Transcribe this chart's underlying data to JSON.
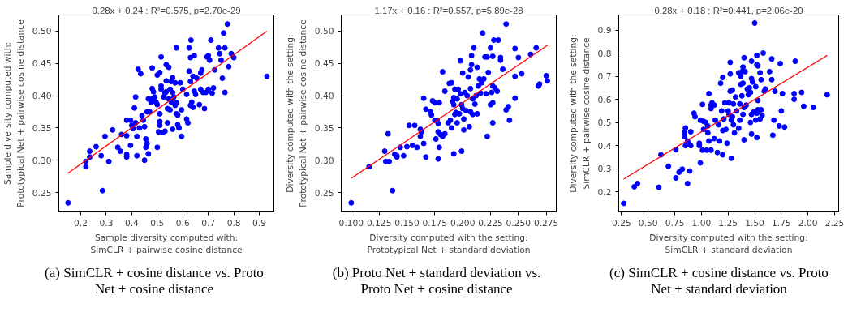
{
  "chart_data": [
    {
      "type": "scatter",
      "title": "0.28x + 0.24 : R²=0.575, p=2.70e-29",
      "xlabel": "Sample diversity computed with:\nSimCLR + pairwise cosine distance",
      "ylabel": "Sample diversity computed with:\nPrototypical Net + pairwise cosine distance",
      "annotations": [
        "(a) SimCLR + cosine distance vs. Proto Net + cosine distance"
      ],
      "grid": false,
      "xlim": [
        0.114,
        0.957
      ],
      "ylim": [
        0.22,
        0.525
      ],
      "xticks": [
        0.2,
        0.3,
        0.4,
        0.5,
        0.6,
        0.7,
        0.8,
        0.9
      ],
      "yticks": [
        {
          "value": 0.25,
          "label": "0.25"
        },
        {
          "value": 0.3,
          "label": "0.30"
        },
        {
          "value": 0.35,
          "label": "0.35"
        },
        {
          "value": 0.4,
          "label": "0.40"
        },
        {
          "value": 0.45,
          "label": "0.45"
        },
        {
          "value": 0.5,
          "label": "0.50"
        }
      ],
      "series": [
        {
          "marker": "circle",
          "color": "#0000ff",
          "x": [
            0.15,
            0.285,
            0.22,
            0.22,
            0.235,
            0.235,
            0.26,
            0.295,
            0.28,
            0.31,
            0.325,
            0.345,
            0.355,
            0.36,
            0.38,
            0.38,
            0.38,
            0.38,
            0.395,
            0.395,
            0.4,
            0.405,
            0.415,
            0.41,
            0.415,
            0.42,
            0.42,
            0.425,
            0.43,
            0.435,
            0.44,
            0.445,
            0.45,
            0.45,
            0.455,
            0.455,
            0.46,
            0.46,
            0.465,
            0.465,
            0.47,
            0.475,
            0.48,
            0.48,
            0.48,
            0.485,
            0.49,
            0.495,
            0.5,
            0.5,
            0.5,
            0.505,
            0.51,
            0.51,
            0.51,
            0.51,
            0.515,
            0.515,
            0.515,
            0.52,
            0.525,
            0.53,
            0.53,
            0.535,
            0.535,
            0.535,
            0.54,
            0.54,
            0.545,
            0.545,
            0.55,
            0.55,
            0.555,
            0.555,
            0.56,
            0.56,
            0.56,
            0.565,
            0.57,
            0.57,
            0.575,
            0.575,
            0.575,
            0.58,
            0.58,
            0.585,
            0.59,
            0.595,
            0.595,
            0.6,
            0.615,
            0.615,
            0.62,
            0.625,
            0.625,
            0.63,
            0.63,
            0.63,
            0.632,
            0.635,
            0.64,
            0.64,
            0.645,
            0.645,
            0.65,
            0.655,
            0.665,
            0.67,
            0.67,
            0.675,
            0.68,
            0.685,
            0.69,
            0.695,
            0.7,
            0.7,
            0.705,
            0.71,
            0.715,
            0.72,
            0.725,
            0.74,
            0.745,
            0.75,
            0.755,
            0.76,
            0.765,
            0.765,
            0.775,
            0.78,
            0.79,
            0.8,
            0.93
          ],
          "values": [
            0.234,
            0.253,
            0.29,
            0.298,
            0.305,
            0.314,
            0.321,
            0.337,
            0.307,
            0.298,
            0.347,
            0.32,
            0.314,
            0.34,
            0.338,
            0.305,
            0.309,
            0.362,
            0.362,
            0.323,
            0.354,
            0.349,
            0.358,
            0.381,
            0.398,
            0.337,
            0.307,
            0.441,
            0.35,
            0.434,
            0.369,
            0.362,
            0.352,
            0.3,
            0.333,
            0.32,
            0.326,
            0.375,
            0.31,
            0.395,
            0.375,
            0.39,
            0.395,
            0.411,
            0.443,
            0.406,
            0.398,
            0.39,
            0.386,
            0.432,
            0.32,
            0.344,
            0.36,
            0.354,
            0.372,
            0.436,
            0.41,
            0.46,
            0.415,
            0.343,
            0.398,
            0.345,
            0.404,
            0.406,
            0.423,
            0.448,
            0.358,
            0.38,
            0.444,
            0.395,
            0.378,
            0.41,
            0.422,
            0.39,
            0.348,
            0.405,
            0.428,
            0.398,
            0.385,
            0.42,
            0.372,
            0.474,
            0.389,
            0.37,
            0.355,
            0.35,
            0.42,
            0.337,
            0.378,
            0.41,
            0.364,
            0.402,
            0.358,
            0.474,
            0.438,
            0.459,
            0.422,
            0.385,
            0.486,
            0.39,
            0.382,
            0.43,
            0.407,
            0.462,
            0.402,
            0.427,
            0.386,
            0.435,
            0.41,
            0.44,
            0.405,
            0.38,
            0.405,
            0.46,
            0.41,
            0.462,
            0.455,
            0.486,
            0.404,
            0.412,
            0.44,
            0.474,
            0.465,
            0.455,
            0.427,
            0.497,
            0.474,
            0.405,
            0.511,
            0.445,
            0.465,
            0.459,
            0.43
          ]
        },
        {
          "type": "line",
          "color": "#ff0000",
          "x": [
            0.15,
            0.93
          ],
          "values": [
            0.28,
            0.5
          ]
        }
      ]
    },
    {
      "type": "scatter",
      "title": "1.17x + 0.16 : R²=0.557, p=5.89e-28",
      "xlabel": "Diversity computed with the setting:\nPrototypical Net + standard deviation",
      "ylabel": "Diversity computed with the setting:\nPrototypical Net + pairwise cosine distance",
      "annotations": [
        "(b) Proto Net + standard deviation vs. Proto Net + cosine distance"
      ],
      "grid": false,
      "xlim": [
        0.091,
        0.284
      ],
      "ylim": [
        0.22,
        0.525
      ],
      "xticks": [
        {
          "value": 0.1,
          "label": "0.100"
        },
        {
          "value": 0.125,
          "label": "0.125"
        },
        {
          "value": 0.15,
          "label": "0.150"
        },
        {
          "value": 0.175,
          "label": "0.175"
        },
        {
          "value": 0.2,
          "label": "0.200"
        },
        {
          "value": 0.225,
          "label": "0.225"
        },
        {
          "value": 0.25,
          "label": "0.250"
        },
        {
          "value": 0.275,
          "label": "0.275"
        }
      ],
      "yticks": [
        {
          "value": 0.25,
          "label": "0.25"
        },
        {
          "value": 0.3,
          "label": "0.30"
        },
        {
          "value": 0.35,
          "label": "0.35"
        },
        {
          "value": 0.4,
          "label": "0.40"
        },
        {
          "value": 0.45,
          "label": "0.45"
        },
        {
          "value": 0.5,
          "label": "0.50"
        }
      ],
      "series": [
        {
          "marker": "circle",
          "color": "#0000ff",
          "x": [
            0.1,
            0.116,
            0.13,
            0.131,
            0.133,
            0.134,
            0.137,
            0.139,
            0.141,
            0.141,
            0.144,
            0.147,
            0.15,
            0.152,
            0.155,
            0.157,
            0.159,
            0.162,
            0.162,
            0.163,
            0.165,
            0.165,
            0.167,
            0.167,
            0.171,
            0.172,
            0.173,
            0.175,
            0.175,
            0.176,
            0.177,
            0.178,
            0.178,
            0.178,
            0.179,
            0.179,
            0.18,
            0.182,
            0.182,
            0.184,
            0.184,
            0.187,
            0.188,
            0.189,
            0.19,
            0.19,
            0.191,
            0.192,
            0.192,
            0.192,
            0.193,
            0.193,
            0.194,
            0.195,
            0.195,
            0.196,
            0.197,
            0.198,
            0.198,
            0.199,
            0.199,
            0.2,
            0.2,
            0.201,
            0.201,
            0.202,
            0.203,
            0.204,
            0.205,
            0.206,
            0.207,
            0.207,
            0.207,
            0.208,
            0.208,
            0.209,
            0.209,
            0.21,
            0.211,
            0.212,
            0.213,
            0.213,
            0.214,
            0.215,
            0.216,
            0.217,
            0.218,
            0.219,
            0.22,
            0.221,
            0.222,
            0.222,
            0.223,
            0.225,
            0.225,
            0.226,
            0.227,
            0.227,
            0.227,
            0.227,
            0.228,
            0.229,
            0.231,
            0.232,
            0.234,
            0.234,
            0.236,
            0.239,
            0.239,
            0.241,
            0.242,
            0.247,
            0.247,
            0.247,
            0.25,
            0.253,
            0.261,
            0.266,
            0.268,
            0.269,
            0.275,
            0.276
          ],
          "values": [
            0.234,
            0.29,
            0.314,
            0.298,
            0.341,
            0.298,
            0.253,
            0.309,
            0.305,
            0.307,
            0.32,
            0.307,
            0.321,
            0.354,
            0.323,
            0.354,
            0.32,
            0.348,
            0.337,
            0.344,
            0.396,
            0.326,
            0.305,
            0.379,
            0.375,
            0.37,
            0.392,
            0.362,
            0.389,
            0.333,
            0.362,
            0.302,
            0.344,
            0.357,
            0.32,
            0.389,
            0.34,
            0.437,
            0.337,
            0.341,
            0.407,
            0.358,
            0.419,
            0.362,
            0.42,
            0.35,
            0.391,
            0.31,
            0.397,
            0.386,
            0.371,
            0.41,
            0.374,
            0.358,
            0.395,
            0.41,
            0.372,
            0.454,
            0.403,
            0.314,
            0.386,
            0.435,
            0.38,
            0.347,
            0.364,
            0.405,
            0.377,
            0.4,
            0.429,
            0.352,
            0.375,
            0.411,
            0.44,
            0.462,
            0.448,
            0.395,
            0.371,
            0.474,
            0.387,
            0.4,
            0.372,
            0.444,
            0.415,
            0.426,
            0.404,
            0.42,
            0.497,
            0.426,
            0.46,
            0.403,
            0.46,
            0.337,
            0.436,
            0.386,
            0.474,
            0.405,
            0.415,
            0.358,
            0.461,
            0.389,
            0.486,
            0.412,
            0.407,
            0.486,
            0.455,
            0.459,
            0.441,
            0.511,
            0.378,
            0.383,
            0.362,
            0.473,
            0.43,
            0.396,
            0.459,
            0.434,
            0.464,
            0.474,
            0.415,
            0.418,
            0.431,
            0.423
          ]
        },
        {
          "type": "line",
          "color": "#ff0000",
          "x": [
            0.1,
            0.276
          ],
          "values": [
            0.272,
            0.478
          ]
        }
      ]
    },
    {
      "type": "scatter",
      "title": "0.28x + 0.18 : R²=0.441, p=2.06e-20",
      "xlabel": "Diversity computed with the setting:\nSimCLR + standard deviation",
      "ylabel": "Diversity computed with the setting:\nSimCLR + pairwise cosine distance",
      "annotations": [
        "(c) SimCLR + cosine distance vs. Proto Net + standard deviation"
      ],
      "grid": false,
      "xlim": [
        0.224,
        2.288
      ],
      "ylim": [
        0.113,
        0.965
      ],
      "xticks": [
        0.25,
        {
          "value": 0.5,
          "label": "0.50"
        },
        0.75,
        {
          "value": 1.0,
          "label": "1.00"
        },
        1.25,
        {
          "value": 1.5,
          "label": "1.50"
        },
        1.75,
        {
          "value": 2.0,
          "label": "2.00"
        },
        2.25
      ],
      "yticks": [
        0.2,
        0.3,
        0.4,
        0.5,
        0.6,
        0.7,
        0.8,
        0.9
      ],
      "series": [
        {
          "marker": "circle",
          "color": "#0000ff",
          "x": [
            0.27,
            0.37,
            0.4,
            0.6,
            0.62,
            0.69,
            0.76,
            0.76,
            0.79,
            0.82,
            0.84,
            0.84,
            0.85,
            0.85,
            0.87,
            0.87,
            0.88,
            0.89,
            0.9,
            0.9,
            0.93,
            0.94,
            0.98,
            0.98,
            0.99,
            0.99,
            1.01,
            1.01,
            1.02,
            1.02,
            1.04,
            1.05,
            1.06,
            1.06,
            1.07,
            1.07,
            1.09,
            1.09,
            1.09,
            1.1,
            1.12,
            1.12,
            1.13,
            1.15,
            1.16,
            1.17,
            1.18,
            1.19,
            1.2,
            1.2,
            1.2,
            1.21,
            1.22,
            1.23,
            1.24,
            1.25,
            1.26,
            1.26,
            1.27,
            1.27,
            1.27,
            1.28,
            1.28,
            1.29,
            1.29,
            1.3,
            1.3,
            1.31,
            1.32,
            1.33,
            1.35,
            1.35,
            1.36,
            1.36,
            1.37,
            1.37,
            1.38,
            1.38,
            1.39,
            1.39,
            1.39,
            1.4,
            1.4,
            1.4,
            1.41,
            1.42,
            1.43,
            1.44,
            1.45,
            1.46,
            1.46,
            1.47,
            1.47,
            1.47,
            1.47,
            1.48,
            1.49,
            1.5,
            1.51,
            1.51,
            1.52,
            1.52,
            1.52,
            1.52,
            1.53,
            1.53,
            1.53,
            1.55,
            1.55,
            1.56,
            1.56,
            1.57,
            1.58,
            1.59,
            1.6,
            1.64,
            1.66,
            1.66,
            1.67,
            1.68,
            1.69,
            1.73,
            1.74,
            1.75,
            1.76,
            1.78,
            1.87,
            1.87,
            1.88,
            1.94,
            1.96,
            2.05,
            2.18
          ],
          "values": [
            0.15,
            0.222,
            0.236,
            0.22,
            0.36,
            0.31,
            0.26,
            0.382,
            0.285,
            0.298,
            0.456,
            0.44,
            0.4,
            0.476,
            0.236,
            0.42,
            0.41,
            0.29,
            0.4,
            0.46,
            0.54,
            0.525,
            0.4,
            0.41,
            0.325,
            0.51,
            0.38,
            0.578,
            0.47,
            0.505,
            0.5,
            0.38,
            0.455,
            0.485,
            0.625,
            0.42,
            0.38,
            0.56,
            0.575,
            0.585,
            0.575,
            0.43,
            0.51,
            0.37,
            0.49,
            0.42,
            0.67,
            0.55,
            0.36,
            0.465,
            0.695,
            0.515,
            0.585,
            0.47,
            0.41,
            0.55,
            0.585,
            0.535,
            0.76,
            0.71,
            0.635,
            0.345,
            0.51,
            0.525,
            0.64,
            0.49,
            0.58,
            0.455,
            0.61,
            0.55,
            0.715,
            0.475,
            0.58,
            0.51,
            0.665,
            0.7,
            0.615,
            0.72,
            0.535,
            0.74,
            0.67,
            0.425,
            0.565,
            0.78,
            0.72,
            0.575,
            0.645,
            0.62,
            0.65,
            0.5,
            0.63,
            0.69,
            0.765,
            0.535,
            0.45,
            0.675,
            0.545,
            0.93,
            0.51,
            0.655,
            0.79,
            0.435,
            0.75,
            0.54,
            0.595,
            0.555,
            0.745,
            0.515,
            0.715,
            0.555,
            0.685,
            0.53,
            0.8,
            0.635,
            0.645,
            0.72,
            0.685,
            0.775,
            0.445,
            0.51,
            0.635,
            0.485,
            0.755,
            0.55,
            0.625,
            0.48,
            0.6,
            0.625,
            0.765,
            0.63,
            0.57,
            0.565,
            0.62
          ]
        },
        {
          "type": "line",
          "color": "#ff0000",
          "x": [
            0.27,
            2.18
          ],
          "values": [
            0.255,
            0.79
          ]
        }
      ]
    }
  ]
}
